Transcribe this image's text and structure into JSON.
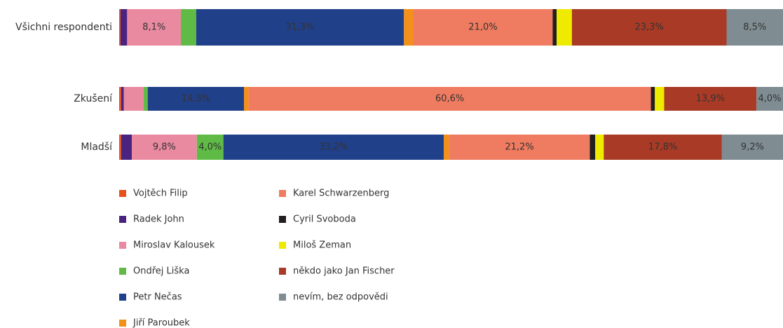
{
  "chart_data": {
    "type": "stacked_bar_horizontal",
    "categories": [
      "Všichni respondenti",
      "Zkušení",
      "Mladší"
    ],
    "xlim": [
      0,
      100
    ],
    "series": [
      {
        "name": "Vojtěch Filip",
        "color": "#e8501e",
        "values": [
          0.2,
          0.3,
          0.3
        ],
        "value_labels": [
          null,
          null,
          null
        ]
      },
      {
        "name": "Radek John",
        "color": "#4a2380",
        "values": [
          1.0,
          0.4,
          1.6
        ],
        "value_labels": [
          null,
          null,
          null
        ]
      },
      {
        "name": "Miroslav Kalousek",
        "color": "#ea8aa0",
        "values": [
          8.1,
          3.0,
          9.8
        ],
        "value_labels": [
          "8,1%",
          null,
          "9,8%"
        ]
      },
      {
        "name": "Ondřej Liška",
        "color": "#5fbb45",
        "values": [
          2.3,
          0.6,
          4.0
        ],
        "value_labels": [
          null,
          null,
          "4,0%"
        ]
      },
      {
        "name": "Petr Nečas",
        "color": "#21408a",
        "values": [
          31.3,
          14.5,
          33.2
        ],
        "value_labels": [
          "31,3%",
          "14,5%",
          "33,2%"
        ]
      },
      {
        "name": "Jiří Paroubek",
        "color": "#f39019",
        "values": [
          1.4,
          0.7,
          0.8
        ],
        "value_labels": [
          null,
          null,
          null
        ]
      },
      {
        "name": "Karel Schwarzenberg",
        "color": "#ef7b60",
        "values": [
          21.0,
          60.6,
          21.2
        ],
        "value_labels": [
          "21,0%",
          "60,6%",
          "21,2%"
        ]
      },
      {
        "name": "Cyril Svoboda",
        "color": "#231f20",
        "values": [
          0.6,
          0.6,
          0.8
        ],
        "value_labels": [
          null,
          null,
          null
        ]
      },
      {
        "name": "Miloš Zeman",
        "color": "#eeea00",
        "values": [
          2.3,
          1.4,
          1.3
        ],
        "value_labels": [
          null,
          null,
          null
        ]
      },
      {
        "name": "někdo jako Jan Fischer",
        "color": "#a93a26",
        "values": [
          23.3,
          13.9,
          17.8
        ],
        "value_labels": [
          "23,3%",
          "13,9%",
          "17,8%"
        ]
      },
      {
        "name": "nevím, bez odpovědi",
        "color": "#7f8c91",
        "values": [
          8.5,
          4.0,
          9.2
        ],
        "value_labels": [
          "8,5%",
          "4,0%",
          "9,2%"
        ]
      }
    ]
  }
}
